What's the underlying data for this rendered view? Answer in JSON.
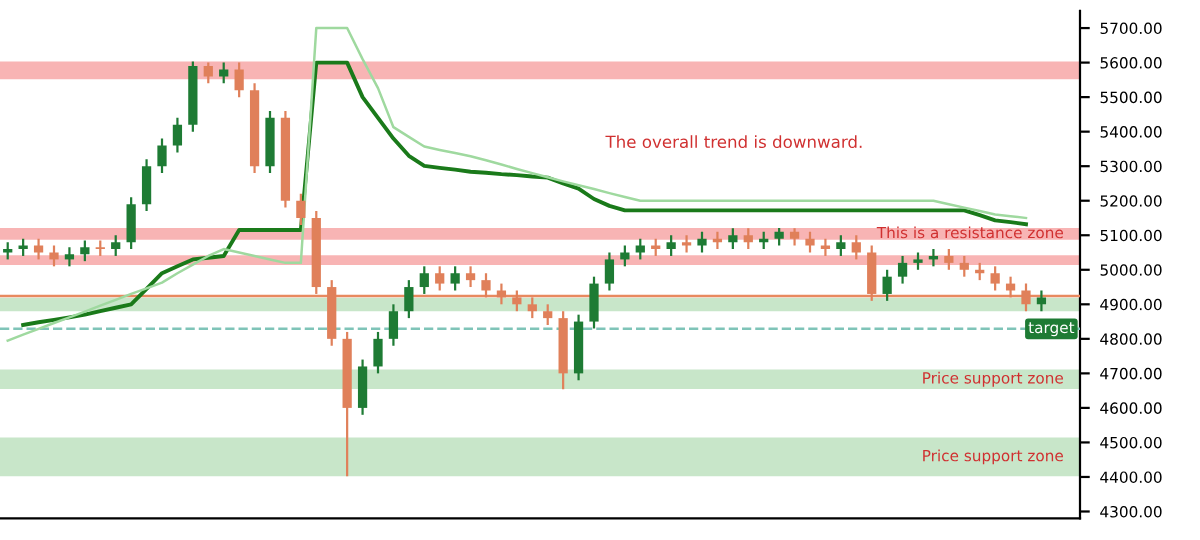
{
  "chart_data": {
    "type": "candlestick",
    "categories": [
      null,
      null,
      null,
      null,
      null,
      null,
      null,
      null,
      null,
      null,
      null,
      null,
      null,
      null,
      null,
      null,
      null,
      null,
      null,
      null,
      null,
      null,
      null,
      null,
      null,
      null,
      null,
      null,
      null,
      null,
      null,
      null,
      null,
      null,
      null,
      null,
      null,
      null,
      null,
      null,
      null,
      null,
      null,
      null,
      null,
      null,
      null,
      null,
      null,
      null,
      null,
      null,
      null,
      null,
      null,
      null,
      null,
      null,
      null,
      null,
      null,
      null,
      null,
      null,
      null,
      null,
      null,
      null
    ],
    "ohlc": [
      [
        5050,
        5080,
        5030,
        5060
      ],
      [
        5060,
        5090,
        5040,
        5070
      ],
      [
        5070,
        5090,
        5030,
        5050
      ],
      [
        5050,
        5070,
        5010,
        5030
      ],
      [
        5030,
        5065,
        5010,
        5045
      ],
      [
        5045,
        5085,
        5025,
        5065
      ],
      [
        5065,
        5085,
        5040,
        5060
      ],
      [
        5060,
        5100,
        5040,
        5080
      ],
      [
        5080,
        5210,
        5060,
        5190
      ],
      [
        5190,
        5320,
        5170,
        5300
      ],
      [
        5300,
        5380,
        5280,
        5360
      ],
      [
        5360,
        5440,
        5340,
        5420
      ],
      [
        5420,
        5603,
        5400,
        5590
      ],
      [
        5590,
        5600,
        5540,
        5560
      ],
      [
        5560,
        5600,
        5540,
        5580
      ],
      [
        5580,
        5600,
        5500,
        5520
      ],
      [
        5520,
        5540,
        5280,
        5300
      ],
      [
        5300,
        5460,
        5280,
        5440
      ],
      [
        5440,
        5460,
        5180,
        5200
      ],
      [
        5200,
        5220,
        5130,
        5150
      ],
      [
        5150,
        5170,
        4930,
        4950
      ],
      [
        4950,
        4970,
        4780,
        4800
      ],
      [
        4800,
        4820,
        4402,
        4600
      ],
      [
        4600,
        4740,
        4580,
        4720
      ],
      [
        4720,
        4820,
        4700,
        4800
      ],
      [
        4800,
        4900,
        4780,
        4880
      ],
      [
        4880,
        4970,
        4860,
        4950
      ],
      [
        4950,
        5010,
        4930,
        4990
      ],
      [
        4990,
        5010,
        4940,
        4960
      ],
      [
        4960,
        5010,
        4940,
        4990
      ],
      [
        4990,
        5010,
        4950,
        4970
      ],
      [
        4970,
        4990,
        4920,
        4940
      ],
      [
        4940,
        4960,
        4900,
        4920
      ],
      [
        4920,
        4940,
        4880,
        4900
      ],
      [
        4900,
        4920,
        4860,
        4880
      ],
      [
        4880,
        4900,
        4840,
        4860
      ],
      [
        4860,
        4880,
        4654,
        4700
      ],
      [
        4700,
        4870,
        4680,
        4850
      ],
      [
        4850,
        4980,
        4830,
        4960
      ],
      [
        4960,
        5050,
        4940,
        5030
      ],
      [
        5030,
        5070,
        5010,
        5050
      ],
      [
        5050,
        5090,
        5030,
        5070
      ],
      [
        5070,
        5090,
        5040,
        5060
      ],
      [
        5060,
        5100,
        5040,
        5080
      ],
      [
        5080,
        5100,
        5050,
        5070
      ],
      [
        5070,
        5110,
        5050,
        5090
      ],
      [
        5090,
        5110,
        5060,
        5080
      ],
      [
        5080,
        5120,
        5060,
        5100
      ],
      [
        5100,
        5120,
        5060,
        5080
      ],
      [
        5080,
        5110,
        5060,
        5090
      ],
      [
        5090,
        5121,
        5070,
        5110
      ],
      [
        5110,
        5120,
        5070,
        5090
      ],
      [
        5090,
        5110,
        5050,
        5070
      ],
      [
        5070,
        5090,
        5040,
        5060
      ],
      [
        5060,
        5100,
        5040,
        5080
      ],
      [
        5080,
        5100,
        5030,
        5050
      ],
      [
        5050,
        5070,
        4910,
        4930
      ],
      [
        4930,
        5000,
        4910,
        4980
      ],
      [
        4980,
        5040,
        4960,
        5020
      ],
      [
        5020,
        5050,
        5000,
        5030
      ],
      [
        5030,
        5060,
        5010,
        5040
      ],
      [
        5040,
        5060,
        5000,
        5020
      ],
      [
        5020,
        5040,
        4980,
        5000
      ],
      [
        5000,
        5020,
        4970,
        4990
      ],
      [
        4990,
        5010,
        4940,
        4960
      ],
      [
        4960,
        4980,
        4920,
        4940
      ],
      [
        4940,
        4960,
        4880,
        4900
      ],
      [
        4900,
        4940,
        4880,
        4920
      ]
    ],
    "colors": [
      "#1e7b34",
      "#1e7b34",
      "#e0805a",
      "#e0805a",
      "#1e7b34",
      "#1e7b34",
      "#e0805a",
      "#1e7b34",
      "#1e7b34",
      "#1e7b34",
      "#1e7b34",
      "#1e7b34",
      "#1e7b34",
      "#e0805a",
      "#1e7b34",
      "#e0805a",
      "#e0805a",
      "#1e7b34",
      "#e0805a",
      "#e0805a",
      "#e0805a",
      "#e0805a",
      "#e0805a",
      "#1e7b34",
      "#1e7b34",
      "#1e7b34",
      "#1e7b34",
      "#1e7b34",
      "#e0805a",
      "#1e7b34",
      "#e0805a",
      "#e0805a",
      "#e0805a",
      "#e0805a",
      "#e0805a",
      "#e0805a",
      "#e0805a",
      "#1e7b34",
      "#1e7b34",
      "#1e7b34",
      "#1e7b34",
      "#1e7b34",
      "#e0805a",
      "#1e7b34",
      "#e0805a",
      "#1e7b34",
      "#e0805a",
      "#1e7b34",
      "#e0805a",
      "#1e7b34",
      "#1e7b34",
      "#e0805a",
      "#e0805a",
      "#e0805a",
      "#1e7b34",
      "#e0805a",
      "#e0805a",
      "#1e7b34",
      "#1e7b34",
      "#1e7b34",
      "#1e7b34",
      "#e0805a",
      "#e0805a",
      "#e0805a",
      "#e0805a",
      "#e0805a",
      "#e0805a",
      "#1e7b34"
    ],
    "series": [
      {
        "type": "line",
        "color": "#1a7a1a",
        "values": [
          null,
          4840,
          4848,
          4855,
          4862,
          4870,
          4880,
          4890,
          4900,
          4945,
          4990,
          5010,
          5030,
          5035,
          5040,
          5115,
          5115,
          5115,
          5115,
          5115,
          5600,
          5600,
          5600,
          5500,
          5440,
          5380,
          5330,
          5301,
          5295,
          5290,
          5284,
          5281,
          5277,
          5274,
          5270,
          5267,
          5250,
          5235,
          5205,
          5185,
          5172,
          5172,
          5172,
          5172,
          5172,
          5172,
          5172,
          5172,
          5172,
          5172,
          5172,
          5172,
          5172,
          5172,
          5172,
          5172,
          5172,
          5172,
          5172,
          5172,
          5172,
          5172,
          5172,
          5158,
          5143,
          5138,
          5132,
          null
        ]
      },
      {
        "type": "line",
        "color": "#9fd99f",
        "values": [
          4795,
          4812,
          4829,
          4846,
          4862,
          4879,
          4896,
          4913,
          4930,
          4946,
          4963,
          4990,
          5015,
          5040,
          5060,
          5050,
          5040,
          5030,
          5020,
          5020,
          5700,
          5700,
          5700,
          5610,
          5526,
          5413,
          5385,
          5357,
          5347,
          5338,
          5329,
          5317,
          5305,
          5292,
          5280,
          5268,
          5256,
          5245,
          5234,
          5222,
          5211,
          5200,
          5200,
          5200,
          5200,
          5200,
          5200,
          5200,
          5200,
          5200,
          5200,
          5200,
          5200,
          5200,
          5200,
          5200,
          5200,
          5200,
          5200,
          5200,
          5200,
          5190,
          5180,
          5170,
          5160,
          5155,
          5150,
          null
        ]
      }
    ],
    "ylim": [
      4280,
      5750
    ],
    "yticks": [
      {
        "value": 4300,
        "label": "4300.00"
      },
      {
        "value": 4400,
        "label": "4400.00"
      },
      {
        "value": 4500,
        "label": "4500.00"
      },
      {
        "value": 4600,
        "label": "4600.00"
      },
      {
        "value": 4700,
        "label": "4700.00"
      },
      {
        "value": 4800,
        "label": "4800.00"
      },
      {
        "value": 4900,
        "label": "4900.00"
      },
      {
        "value": 5000,
        "label": "5000.00"
      },
      {
        "value": 5100,
        "label": "5100.00"
      },
      {
        "value": 5200,
        "label": "5200.00"
      },
      {
        "value": 5300,
        "label": "5300.00"
      },
      {
        "value": 5400,
        "label": "5400.00"
      },
      {
        "value": 5500,
        "label": "5500.00"
      },
      {
        "value": 5600,
        "label": "5600.00"
      },
      {
        "value": 5700,
        "label": "5700.00"
      }
    ],
    "tick_labels": "y",
    "ref_lines": [
      {
        "axis": "y",
        "value": 4924,
        "color": "#e8895f",
        "line_style": "solid"
      },
      {
        "axis": "y",
        "value": 4829,
        "label": "target",
        "color": "#7fc4b8",
        "line_style": "dashed"
      }
    ],
    "bands": [
      {
        "axis": "y",
        "from": 5552,
        "to": 5603,
        "color": "#f8b4b4"
      },
      {
        "axis": "y",
        "from": 5087,
        "to": 5121,
        "label": "This is a resistance zone",
        "color": "#f8b4b4"
      },
      {
        "axis": "y",
        "from": 5014,
        "to": 5042,
        "color": "#f8b4b4"
      },
      {
        "axis": "y",
        "from": 4880,
        "to": 4919,
        "color": "#c8e6c9"
      },
      {
        "axis": "y",
        "from": 4655,
        "to": 4711,
        "label": "Price support zone",
        "color": "#c8e6c9"
      },
      {
        "axis": "y",
        "from": 4402,
        "to": 4514,
        "label": "Price support zone",
        "color": "#c8e6c9"
      }
    ],
    "annotations": [
      "The overall trend is downward."
    ],
    "grid": false,
    "legend": false
  }
}
